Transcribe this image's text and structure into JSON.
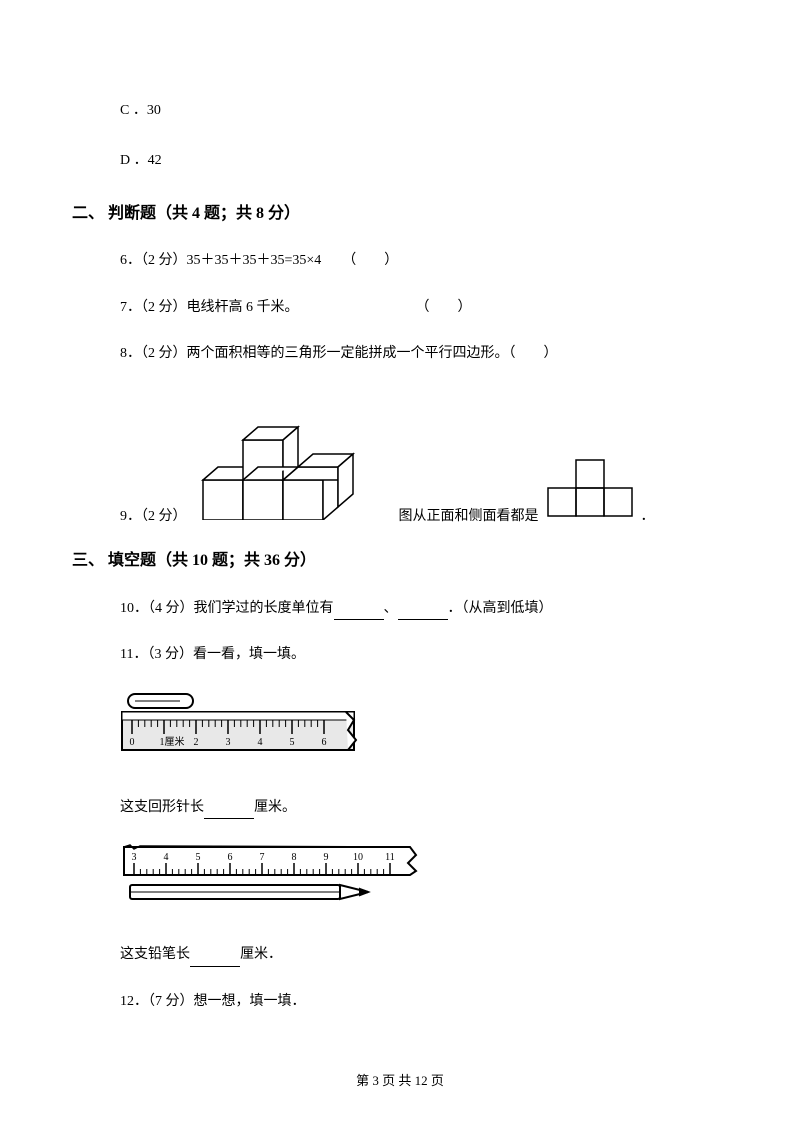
{
  "options": {
    "c": "C ．30",
    "d": "D ．42"
  },
  "section2": {
    "heading": "二、 判断题（共 4 题；共 8 分）",
    "q6": "6．（2 分）35＋35＋35＋35=35×4　　（　　）",
    "q7_a": "7．（2 分）电线杆高 6 千米。",
    "q7_b": "（　　）",
    "q8": "8．（2 分）两个面积相等的三角形一定能拼成一个平行四边形。（　　）",
    "q9_a": "9．（2 分）",
    "q9_b": "图从正面和侧面看都是",
    "q9_c": "．"
  },
  "section3": {
    "heading": "三、 填空题（共 10 题；共 36 分）",
    "q10_a": "10．（4 分）我们学过的长度单位有",
    "q10_b": "、",
    "q10_c": "．（从高到低填）",
    "q11": "11．（3 分）看一看，填一填。",
    "q11_ans1_a": "这支回形针长",
    "q11_ans1_b": "厘米。",
    "q11_ans2_a": "这支铅笔长",
    "q11_ans2_b": "厘米．",
    "q12": "12．（7 分）想一想，填一填．"
  },
  "footer": "第 3 页 共 12 页",
  "ruler1": {
    "labels": [
      "0",
      "1厘米",
      "2",
      "3",
      "4",
      "5",
      "6"
    ]
  },
  "ruler2": {
    "labels": [
      "3",
      "4",
      "5",
      "6",
      "7",
      "8",
      "9",
      "10",
      "11"
    ]
  }
}
